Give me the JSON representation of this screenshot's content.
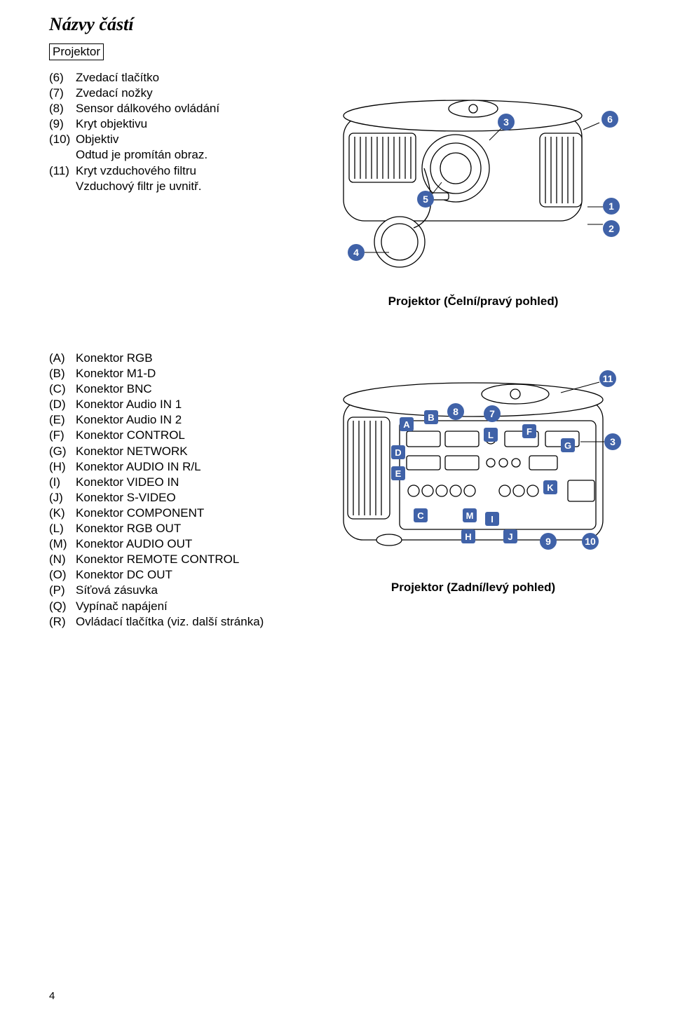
{
  "page": {
    "title": "Názvy částí",
    "subtitle": "Projektor",
    "pagenum": "4"
  },
  "fig1": {
    "caption": "Projektor (Čelní/pravý pohled)",
    "callouts": {
      "c1": "1",
      "c2": "2",
      "c3": "3",
      "c4": "4",
      "c5": "5",
      "c6": "6"
    }
  },
  "fig2": {
    "caption": "Projektor (Zadní/levý pohled)",
    "callouts_num": {
      "c3": "3",
      "c7": "7",
      "c8": "8",
      "c9": "9",
      "c10": "10",
      "c11": "11"
    },
    "callouts_alpha": {
      "A": "A",
      "B": "B",
      "C": "C",
      "D": "D",
      "E": "E",
      "F": "F",
      "G": "G",
      "H": "H",
      "I": "I",
      "J": "J",
      "K": "K",
      "L": "L",
      "M": "M"
    }
  },
  "list1": [
    {
      "n": "(6)",
      "t": "Zvedací tlačítko"
    },
    {
      "n": "(7)",
      "t": "Zvedací nožky"
    },
    {
      "n": "(8)",
      "t": "Sensor dálkového ovládání"
    },
    {
      "n": "(9)",
      "t": "Kryt objektivu"
    },
    {
      "n": "(10)",
      "t": "Objektiv"
    },
    {
      "n": "",
      "t": "Odtud je promítán obraz.",
      "indent": true
    },
    {
      "n": "(11)",
      "t": "Kryt vzduchového filtru"
    },
    {
      "n": "",
      "t": "Vzduchový filtr je uvnitř.",
      "indent": true
    }
  ],
  "list2": [
    {
      "n": "(A)",
      "t": "Konektor RGB"
    },
    {
      "n": "(B)",
      "t": "Konektor M1-D"
    },
    {
      "n": "(C)",
      "t": "Konektor BNC"
    },
    {
      "n": "(D)",
      "t": "Konektor Audio IN 1"
    },
    {
      "n": "(E)",
      "t": "Konektor Audio IN 2"
    },
    {
      "n": "(F)",
      "t": "Konektor CONTROL"
    },
    {
      "n": "(G)",
      "t": "Konektor NETWORK"
    },
    {
      "n": "(H)",
      "t": "Konektor AUDIO IN R/L"
    },
    {
      "n": "(I)",
      "t": "Konektor VIDEO IN"
    },
    {
      "n": "(J)",
      "t": "Konektor S-VIDEO"
    },
    {
      "n": "(K)",
      "t": "Konektor COMPONENT"
    },
    {
      "n": "(L)",
      "t": "Konektor RGB OUT"
    },
    {
      "n": "(M)",
      "t": "Konektor AUDIO OUT"
    },
    {
      "n": "(N)",
      "t": "Konektor REMOTE CONTROL"
    },
    {
      "n": "(O)",
      "t": "Konektor DC OUT"
    },
    {
      "n": "(P)",
      "t": "Síťová zásuvka"
    },
    {
      "n": "(Q)",
      "t": "Vypínač napájení"
    },
    {
      "n": "(R)",
      "t": "Ovládací tlačítka (viz. další stránka)"
    }
  ],
  "colors": {
    "callout_bg": "#4062a8",
    "callout_fg": "#ffffff",
    "line": "#000000"
  }
}
